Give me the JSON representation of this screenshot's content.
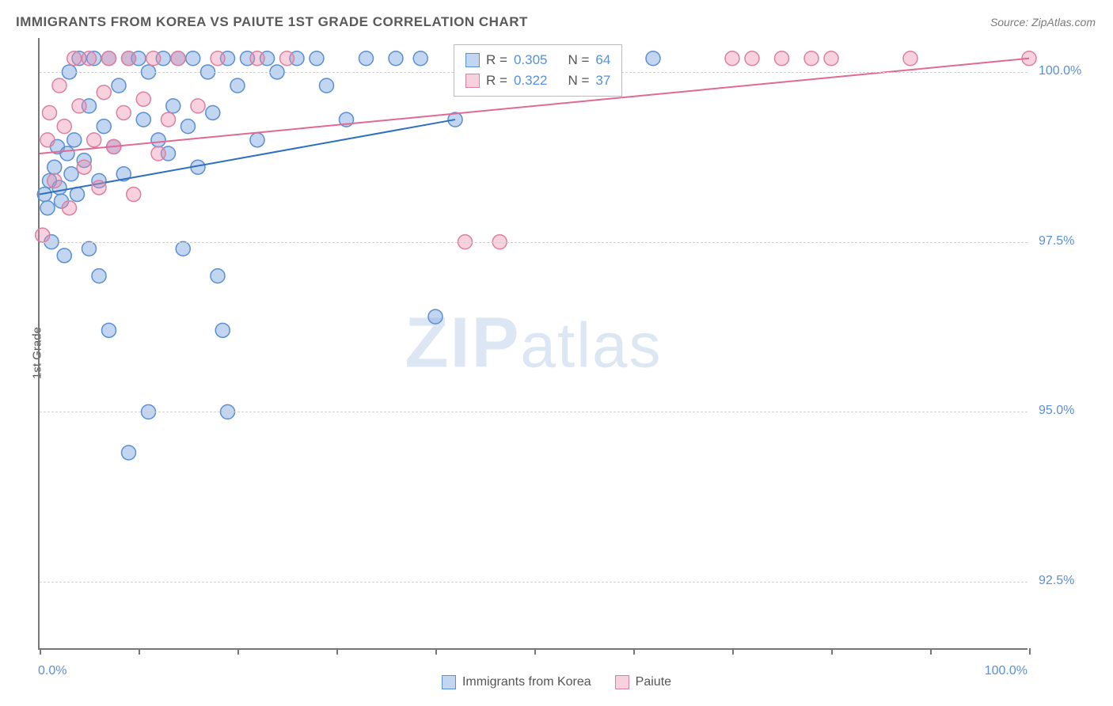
{
  "title": "IMMIGRANTS FROM KOREA VS PAIUTE 1ST GRADE CORRELATION CHART",
  "source_label": "Source: ZipAtlas.com",
  "y_axis_label": "1st Grade",
  "watermark": {
    "bold": "ZIP",
    "light": "atlas"
  },
  "chart": {
    "type": "scatter",
    "xlim": [
      0,
      100
    ],
    "ylim": [
      91.5,
      100.5
    ],
    "y_ticks": [
      92.5,
      95.0,
      97.5,
      100.0
    ],
    "y_tick_labels": [
      "92.5%",
      "95.0%",
      "97.5%",
      "100.0%"
    ],
    "x_ticks": [
      0,
      10,
      20,
      30,
      40,
      50,
      60,
      70,
      80,
      90,
      100
    ],
    "x_lim_labels": {
      "min": "0.0%",
      "max": "100.0%"
    },
    "background_color": "#ffffff",
    "grid_color": "#d0d0d0",
    "axis_color": "#777777",
    "marker_radius": 9,
    "marker_stroke_width": 1.5,
    "line_width": 2,
    "series": [
      {
        "key": "korea",
        "label": "Immigrants from Korea",
        "color_fill": "rgba(120,165,225,0.45)",
        "color_stroke": "#5a8fd0",
        "line_color": "#2f6fc0",
        "R": "0.305",
        "N": "64",
        "trend": {
          "x1": 0,
          "y1": 98.2,
          "x2": 42,
          "y2": 99.3
        },
        "points": [
          [
            0.5,
            98.2
          ],
          [
            0.8,
            98.0
          ],
          [
            1.0,
            98.4
          ],
          [
            1.2,
            97.5
          ],
          [
            1.5,
            98.6
          ],
          [
            1.8,
            98.9
          ],
          [
            2.0,
            98.3
          ],
          [
            2.2,
            98.1
          ],
          [
            2.5,
            97.3
          ],
          [
            2.8,
            98.8
          ],
          [
            3.0,
            100.0
          ],
          [
            3.2,
            98.5
          ],
          [
            3.5,
            99.0
          ],
          [
            3.8,
            98.2
          ],
          [
            4.0,
            100.2
          ],
          [
            4.5,
            98.7
          ],
          [
            5.0,
            99.5
          ],
          [
            5.0,
            97.4
          ],
          [
            5.5,
            100.2
          ],
          [
            6.0,
            98.4
          ],
          [
            6.0,
            97.0
          ],
          [
            6.5,
            99.2
          ],
          [
            7.0,
            100.2
          ],
          [
            7.5,
            98.9
          ],
          [
            7.0,
            96.2
          ],
          [
            8.0,
            99.8
          ],
          [
            8.5,
            98.5
          ],
          [
            9.0,
            100.2
          ],
          [
            9.0,
            94.4
          ],
          [
            10.0,
            100.2
          ],
          [
            10.5,
            99.3
          ],
          [
            11.0,
            100.0
          ],
          [
            11.0,
            95.0
          ],
          [
            12.0,
            99.0
          ],
          [
            12.5,
            100.2
          ],
          [
            13.0,
            98.8
          ],
          [
            13.5,
            99.5
          ],
          [
            14.0,
            100.2
          ],
          [
            14.5,
            97.4
          ],
          [
            15.0,
            99.2
          ],
          [
            15.5,
            100.2
          ],
          [
            16.0,
            98.6
          ],
          [
            17.0,
            100.0
          ],
          [
            17.5,
            99.4
          ],
          [
            18.0,
            97.0
          ],
          [
            18.5,
            96.2
          ],
          [
            19.0,
            100.2
          ],
          [
            19.0,
            95.0
          ],
          [
            20.0,
            99.8
          ],
          [
            21.0,
            100.2
          ],
          [
            22.0,
            99.0
          ],
          [
            23.0,
            100.2
          ],
          [
            24.0,
            100.0
          ],
          [
            26.0,
            100.2
          ],
          [
            28.0,
            100.2
          ],
          [
            29.0,
            99.8
          ],
          [
            31.0,
            99.3
          ],
          [
            33.0,
            100.2
          ],
          [
            36.0,
            100.2
          ],
          [
            38.5,
            100.2
          ],
          [
            40.0,
            96.4
          ],
          [
            42.0,
            99.3
          ],
          [
            46.0,
            100.2
          ],
          [
            62.0,
            100.2
          ]
        ]
      },
      {
        "key": "paiute",
        "label": "Paiute",
        "color_fill": "rgba(235,140,170,0.40)",
        "color_stroke": "#dd7fa0",
        "line_color": "#e06a95",
        "R": "0.322",
        "N": "37",
        "trend": {
          "x1": 0,
          "y1": 98.8,
          "x2": 100,
          "y2": 100.2
        },
        "points": [
          [
            0.3,
            97.6
          ],
          [
            0.8,
            99.0
          ],
          [
            1.0,
            99.4
          ],
          [
            1.5,
            98.4
          ],
          [
            2.0,
            99.8
          ],
          [
            2.5,
            99.2
          ],
          [
            3.0,
            98.0
          ],
          [
            3.5,
            100.2
          ],
          [
            4.0,
            99.5
          ],
          [
            4.5,
            98.6
          ],
          [
            5.0,
            100.2
          ],
          [
            5.5,
            99.0
          ],
          [
            6.0,
            98.3
          ],
          [
            6.5,
            99.7
          ],
          [
            7.0,
            100.2
          ],
          [
            7.5,
            98.9
          ],
          [
            8.5,
            99.4
          ],
          [
            9.0,
            100.2
          ],
          [
            9.5,
            98.2
          ],
          [
            10.5,
            99.6
          ],
          [
            11.5,
            100.2
          ],
          [
            12.0,
            98.8
          ],
          [
            13.0,
            99.3
          ],
          [
            14.0,
            100.2
          ],
          [
            16.0,
            99.5
          ],
          [
            18.0,
            100.2
          ],
          [
            22.0,
            100.2
          ],
          [
            25.0,
            100.2
          ],
          [
            43.0,
            97.5
          ],
          [
            46.5,
            97.5
          ],
          [
            70.0,
            100.2
          ],
          [
            72.0,
            100.2
          ],
          [
            75.0,
            100.2
          ],
          [
            78.0,
            100.2
          ],
          [
            80.0,
            100.2
          ],
          [
            88.0,
            100.2
          ],
          [
            100.0,
            100.2
          ]
        ]
      }
    ]
  },
  "legend_box": {
    "rows": [
      {
        "swatch_series": "korea",
        "r_label": "R =",
        "r_val": "0.305",
        "n_label": "N =",
        "n_val": "64"
      },
      {
        "swatch_series": "paiute",
        "r_label": "R =",
        "r_val": "0.322",
        "n_label": "N =",
        "n_val": "37"
      }
    ]
  },
  "bottom_legend": [
    {
      "series": "korea",
      "label": "Immigrants from Korea"
    },
    {
      "series": "paiute",
      "label": "Paiute"
    }
  ]
}
